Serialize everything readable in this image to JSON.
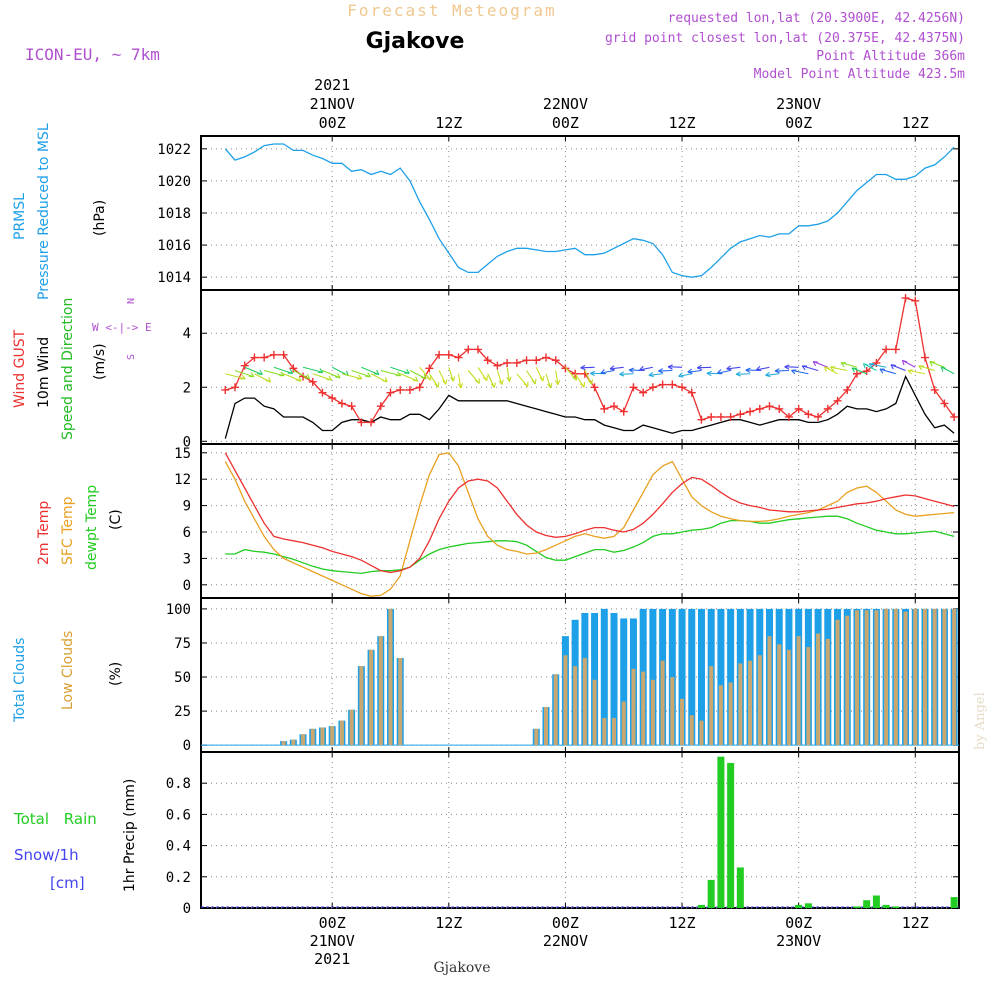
{
  "header": {
    "title": "Forecast Meteogram",
    "location": "Gjakove",
    "model": "ICON-EU, ~ 7km",
    "requested": "requested lon,lat (20.3900E, 42.4256N)",
    "grid_point": "grid point closest lon,lat (20.375E, 42.4375N)",
    "point_altitude": "Point Altitude 366m",
    "model_altitude": "Model Point Altitude 423.5m",
    "footer_location": "Gjakove",
    "watermark": "by Angel"
  },
  "colors": {
    "pressure": "#1ea0e8",
    "gust": "#ee3030",
    "wind": "#000000",
    "wind_dir": "#22bb22",
    "t2m": "#ee3030",
    "sfc": "#e8a020",
    "dewpt": "#22cc22",
    "total_clouds": "#1ea0e8",
    "low_clouds": "#c8a870",
    "precip": "#22cc22",
    "snow": "#4444ee",
    "title_faint": "#f0c890",
    "purple": "#b050d0"
  },
  "time_axis": {
    "top_ticks": [
      {
        "t": 18,
        "lines": [
          "2021",
          "21NOV",
          "00Z"
        ]
      },
      {
        "t": 30,
        "lines": [
          "12Z"
        ]
      },
      {
        "t": 42,
        "lines": [
          "22NOV",
          "00Z"
        ]
      },
      {
        "t": 54,
        "lines": [
          "12Z"
        ]
      },
      {
        "t": 66,
        "lines": [
          "23NOV",
          "00Z"
        ]
      },
      {
        "t": 78,
        "lines": [
          "12Z"
        ]
      }
    ],
    "bottom_ticks": [
      {
        "t": 18,
        "lines": [
          "00Z",
          "21NOV",
          "2021"
        ]
      },
      {
        "t": 30,
        "lines": [
          "12Z"
        ]
      },
      {
        "t": 42,
        "lines": [
          "00Z",
          "22NOV"
        ]
      },
      {
        "t": 54,
        "lines": [
          "12Z"
        ]
      },
      {
        "t": 66,
        "lines": [
          "00Z",
          "23NOV"
        ]
      },
      {
        "t": 78,
        "lines": [
          "12Z"
        ]
      }
    ]
  },
  "panels": {
    "pressure": {
      "label_line1": "PRMSL",
      "label_line2": "Pressure Reduced to MSL",
      "unit": "(hPa)",
      "yticks": [
        "1014",
        "1016",
        "1018",
        "1020",
        "1022"
      ],
      "ylim": [
        1013.2,
        1022.8
      ]
    },
    "wind": {
      "label_gust": "Wind GUST",
      "label_wind": "10m Wind",
      "label_dir": "Speed and Direction",
      "unit": "(m/s)",
      "compass": "W <-|-> E",
      "compass_n": "N",
      "compass_s": "S",
      "yticks": [
        "0",
        "2",
        "4"
      ],
      "ylim": [
        -0.1,
        5.6
      ]
    },
    "temp": {
      "label_t2m": "2m Temp",
      "label_sfc": "SFC Temp",
      "label_dew": "dewpt Temp",
      "unit": "(C)",
      "yticks": [
        "0",
        "3",
        "6",
        "9",
        "12",
        "15"
      ],
      "ylim": [
        -1.5,
        16
      ]
    },
    "clouds": {
      "label_total": "Total Clouds",
      "label_low": "Low Clouds",
      "unit": "(%)",
      "yticks": [
        "0",
        "25",
        "50",
        "75",
        "100"
      ],
      "ylim": [
        -5,
        108
      ]
    },
    "precip": {
      "label_rain": "Total Rain",
      "label_snow": "Snow/1h",
      "label_cm": "[cm]",
      "label_axis": "1hr Precip (mm)",
      "yticks": [
        "0",
        "0.2",
        "0.4",
        "0.6",
        "0.8"
      ],
      "ylim": [
        0,
        1.0
      ]
    }
  },
  "chart_data": [
    {
      "type": "line",
      "title": "PRMSL Pressure Reduced to MSL",
      "ylabel": "hPa",
      "x_hours_start": 7,
      "series": [
        {
          "name": "PRMSL",
          "values": [
            1022.0,
            1021.3,
            1021.5,
            1021.8,
            1022.2,
            1022.3,
            1022.3,
            1021.9,
            1021.9,
            1021.6,
            1021.4,
            1021.1,
            1021.1,
            1020.6,
            1020.7,
            1020.4,
            1020.6,
            1020.4,
            1020.8,
            1020.0,
            1018.7,
            1017.6,
            1016.4,
            1015.5,
            1014.6,
            1014.3,
            1014.3,
            1014.8,
            1015.3,
            1015.6,
            1015.8,
            1015.8,
            1015.7,
            1015.6,
            1015.6,
            1015.7,
            1015.8,
            1015.4,
            1015.4,
            1015.5,
            1015.8,
            1016.1,
            1016.4,
            1016.3,
            1016.1,
            1015.4,
            1014.3,
            1014.1,
            1014.0,
            1014.1,
            1014.6,
            1015.2,
            1015.8,
            1016.2,
            1016.4,
            1016.6,
            1016.5,
            1016.7,
            1016.7,
            1017.2,
            1017.2,
            1017.3,
            1017.5,
            1018.0,
            1018.7,
            1019.4,
            1019.9,
            1020.4,
            1020.4,
            1020.1,
            1020.1,
            1020.3,
            1020.8,
            1021.0,
            1021.5,
            1022.1
          ]
        }
      ]
    },
    {
      "type": "line",
      "title": "Wind GUST / 10m Wind Speed and Direction",
      "ylabel": "m/s",
      "x_hours_start": 7,
      "series": [
        {
          "name": "Wind GUST",
          "values": [
            1.9,
            2.0,
            2.8,
            3.1,
            3.1,
            3.2,
            3.2,
            2.7,
            2.4,
            2.2,
            1.8,
            1.6,
            1.4,
            1.3,
            0.7,
            0.7,
            1.3,
            1.8,
            1.9,
            1.9,
            2.0,
            2.7,
            3.2,
            3.2,
            3.1,
            3.4,
            3.4,
            3.0,
            2.8,
            2.9,
            2.9,
            3.0,
            3.0,
            3.1,
            3.0,
            2.7,
            2.5,
            2.5,
            2.0,
            1.2,
            1.3,
            1.1,
            2.0,
            1.8,
            2.0,
            2.1,
            2.1,
            2.0,
            1.8,
            0.8,
            0.9,
            0.9,
            0.9,
            1.0,
            1.1,
            1.2,
            1.3,
            1.2,
            0.9,
            1.2,
            1.0,
            0.9,
            1.2,
            1.5,
            1.9,
            2.5,
            2.6,
            2.9,
            3.4,
            3.4,
            5.3,
            5.2,
            3.1,
            1.9,
            1.4,
            0.9
          ]
        },
        {
          "name": "10m Wind",
          "values": [
            0.1,
            1.4,
            1.6,
            1.6,
            1.3,
            1.2,
            0.9,
            0.9,
            0.9,
            0.7,
            0.4,
            0.4,
            0.7,
            0.8,
            0.8,
            0.7,
            0.9,
            0.8,
            0.8,
            1.0,
            1.0,
            0.8,
            1.2,
            1.7,
            1.5,
            1.5,
            1.5,
            1.5,
            1.5,
            1.5,
            1.4,
            1.3,
            1.2,
            1.1,
            1.0,
            0.9,
            0.9,
            0.8,
            0.8,
            0.6,
            0.5,
            0.4,
            0.4,
            0.6,
            0.5,
            0.4,
            0.3,
            0.4,
            0.4,
            0.5,
            0.6,
            0.7,
            0.8,
            0.8,
            0.7,
            0.6,
            0.7,
            0.8,
            0.8,
            0.8,
            0.7,
            0.7,
            0.8,
            1.0,
            1.3,
            1.2,
            1.2,
            1.1,
            1.2,
            1.4,
            2.4,
            1.7,
            1.0,
            0.5,
            0.6,
            0.3
          ]
        }
      ]
    },
    {
      "type": "line",
      "title": "2m Temp / SFC Temp / dewpt Temp",
      "ylabel": "C",
      "x_hours_start": 7,
      "series": [
        {
          "name": "2m Temp",
          "values": [
            15.0,
            13.0,
            11.0,
            9.0,
            7.0,
            5.5,
            5.2,
            5.0,
            4.8,
            4.5,
            4.2,
            3.8,
            3.5,
            3.2,
            2.8,
            2.2,
            1.6,
            1.4,
            1.6,
            2.0,
            3.0,
            5.0,
            7.5,
            9.5,
            11.0,
            11.8,
            12.0,
            11.8,
            11.0,
            9.5,
            8.0,
            6.8,
            6.0,
            5.6,
            5.4,
            5.5,
            5.8,
            6.2,
            6.5,
            6.5,
            6.2,
            6.0,
            6.3,
            7.0,
            8.0,
            9.2,
            10.5,
            11.5,
            12.2,
            12.0,
            11.3,
            10.5,
            9.8,
            9.3,
            9.0,
            8.8,
            8.5,
            8.4,
            8.3,
            8.3,
            8.4,
            8.5,
            8.6,
            8.8,
            9.0,
            9.2,
            9.3,
            9.5,
            9.8,
            10.0,
            10.2,
            10.1,
            9.8,
            9.5,
            9.2,
            8.9
          ]
        },
        {
          "name": "SFC Temp",
          "values": [
            14.0,
            12.0,
            9.5,
            7.5,
            5.5,
            4.0,
            3.0,
            2.5,
            2.0,
            1.5,
            1.0,
            0.5,
            0.0,
            -0.5,
            -1.0,
            -1.3,
            -1.2,
            -0.5,
            1.0,
            5.0,
            9.0,
            12.5,
            14.8,
            15.0,
            13.5,
            10.5,
            7.5,
            5.5,
            4.5,
            4.0,
            3.8,
            3.5,
            3.6,
            4.0,
            4.5,
            5.0,
            5.5,
            5.8,
            5.5,
            5.3,
            5.5,
            6.5,
            8.5,
            10.5,
            12.5,
            13.5,
            14.0,
            12.0,
            10.0,
            9.0,
            8.3,
            7.8,
            7.5,
            7.3,
            7.2,
            7.2,
            7.3,
            7.5,
            7.8,
            8.0,
            8.2,
            8.5,
            9.0,
            9.5,
            10.5,
            11.0,
            11.2,
            10.5,
            9.5,
            8.5,
            8.0,
            7.8,
            7.9,
            8.0,
            8.1,
            8.2
          ]
        },
        {
          "name": "dewpt Temp",
          "values": [
            3.5,
            3.5,
            4.0,
            3.8,
            3.7,
            3.5,
            3.2,
            2.9,
            2.5,
            2.1,
            1.8,
            1.6,
            1.5,
            1.4,
            1.3,
            1.5,
            1.6,
            1.6,
            1.7,
            2.0,
            2.8,
            3.5,
            4.0,
            4.3,
            4.5,
            4.7,
            4.8,
            4.9,
            5.0,
            5.0,
            4.9,
            4.5,
            3.8,
            3.1,
            2.8,
            2.8,
            3.2,
            3.6,
            4.0,
            4.0,
            3.7,
            3.9,
            4.3,
            4.8,
            5.5,
            5.8,
            5.8,
            6.0,
            6.2,
            6.3,
            6.5,
            7.0,
            7.3,
            7.3,
            7.2,
            7.0,
            7.0,
            7.2,
            7.4,
            7.5,
            7.6,
            7.7,
            7.8,
            7.8,
            7.5,
            7.0,
            6.6,
            6.2,
            6.0,
            5.8,
            5.8,
            5.9,
            6.0,
            6.1,
            5.8,
            5.5
          ]
        }
      ]
    },
    {
      "type": "bar",
      "title": "Total Clouds / Low Clouds",
      "ylabel": "%",
      "x_hours_start": 7,
      "series": [
        {
          "name": "Total Clouds",
          "values": [
            0,
            0,
            0,
            0,
            0,
            0,
            3,
            4,
            8,
            12,
            13,
            14,
            18,
            26,
            58,
            70,
            80,
            100,
            64,
            0,
            0,
            0,
            0,
            0,
            0,
            0,
            0,
            0,
            0,
            0,
            0,
            0,
            12,
            28,
            52,
            80,
            92,
            97,
            97,
            100,
            97,
            93,
            93,
            100,
            100,
            100,
            100,
            100,
            100,
            100,
            100,
            100,
            100,
            100,
            100,
            100,
            100,
            100,
            100,
            100,
            100,
            100,
            100,
            100,
            100,
            100,
            100,
            100,
            100,
            100,
            100,
            100,
            100,
            100,
            100,
            100
          ]
        },
        {
          "name": "Low Clouds",
          "values": [
            0,
            0,
            0,
            0,
            0,
            0,
            3,
            4,
            8,
            12,
            13,
            14,
            18,
            26,
            58,
            70,
            80,
            100,
            64,
            0,
            0,
            0,
            0,
            0,
            0,
            0,
            0,
            0,
            0,
            0,
            0,
            0,
            12,
            28,
            52,
            66,
            58,
            64,
            48,
            20,
            20,
            32,
            56,
            54,
            48,
            62,
            50,
            34,
            22,
            18,
            58,
            44,
            46,
            60,
            62,
            66,
            80,
            74,
            70,
            80,
            72,
            82,
            78,
            92,
            95,
            99,
            99,
            99,
            100,
            100,
            98,
            100,
            100,
            100,
            100,
            100
          ]
        }
      ]
    },
    {
      "type": "bar",
      "title": "1hr Precip",
      "ylabel": "1hr Precip (mm)",
      "x_hours_start": 7,
      "series": [
        {
          "name": "Total Rain",
          "values": [
            0,
            0,
            0,
            0,
            0,
            0,
            0,
            0,
            0,
            0,
            0,
            0,
            0,
            0,
            0,
            0,
            0,
            0,
            0,
            0,
            0,
            0,
            0,
            0,
            0,
            0,
            0,
            0,
            0,
            0,
            0,
            0,
            0,
            0,
            0,
            0,
            0,
            0,
            0,
            0,
            0,
            0,
            0,
            0,
            0,
            0,
            0,
            0,
            0,
            0.02,
            0.18,
            0.97,
            0.93,
            0.26,
            0,
            0,
            0,
            0,
            0,
            0.02,
            0.03,
            0,
            0,
            0,
            0,
            0.01,
            0.05,
            0.08,
            0.02,
            0.01,
            0,
            0,
            0,
            0,
            0,
            0.07
          ]
        },
        {
          "name": "Snow/1h",
          "values": [
            0,
            0,
            0,
            0,
            0,
            0,
            0,
            0,
            0,
            0,
            0,
            0,
            0,
            0,
            0,
            0,
            0,
            0,
            0,
            0,
            0,
            0,
            0,
            0,
            0,
            0,
            0,
            0,
            0,
            0,
            0,
            0,
            0,
            0,
            0,
            0,
            0,
            0,
            0,
            0,
            0,
            0,
            0,
            0,
            0,
            0,
            0,
            0,
            0,
            0,
            0,
            0,
            0,
            0,
            0,
            0,
            0,
            0,
            0,
            0,
            0,
            0,
            0,
            0,
            0,
            0,
            0,
            0,
            0,
            0,
            0,
            0,
            0,
            0,
            0,
            0
          ]
        }
      ]
    }
  ]
}
